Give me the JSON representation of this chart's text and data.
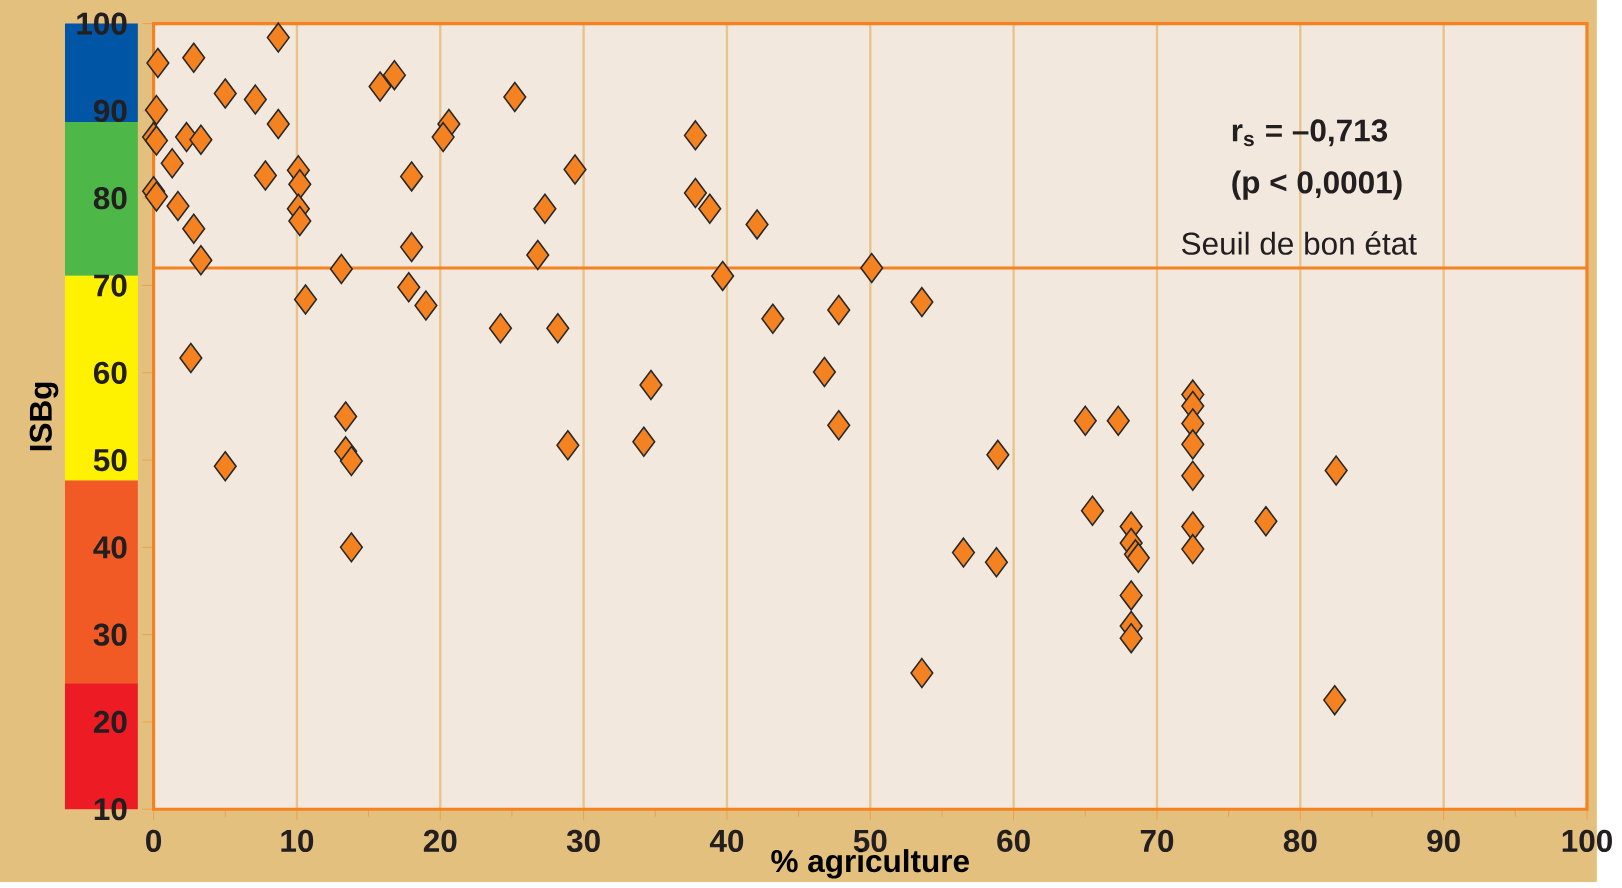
{
  "chart_data": {
    "type": "scatter",
    "xlabel": "% agriculture",
    "ylabel": "ISBg",
    "x": [
      0.3,
      2.8,
      8.7,
      5.0,
      7.1,
      0.2,
      15.8,
      16.8,
      25.2,
      8.7,
      0.0,
      0.2,
      2.3,
      3.3,
      20.6,
      20.2,
      1.3,
      7.8,
      10.1,
      10.2,
      18.0,
      0.0,
      0.2,
      1.7,
      10.1,
      10.2,
      2.8,
      3.3,
      18.0,
      13.1,
      27.3,
      26.8,
      10.6,
      17.8,
      19.0,
      24.2,
      28.2,
      2.6,
      13.4,
      5.0,
      13.4,
      13.8,
      13.8,
      29.4,
      37.8,
      37.8,
      38.8,
      42.1,
      39.7,
      50.1,
      43.2,
      47.8,
      53.6,
      34.7,
      46.8,
      47.8,
      28.9,
      34.2,
      58.9,
      56.5,
      58.8,
      53.6,
      65.0,
      67.3,
      72.5,
      72.5,
      72.5,
      72.5,
      72.5,
      72.5,
      72.5,
      82.5,
      65.5,
      68.2,
      68.2,
      68.5,
      68.7,
      77.6,
      68.2,
      68.2,
      68.2,
      82.4
    ],
    "series": [
      {
        "color": "#f58220",
        "values": [
          95.5,
          96.1,
          98.4,
          92.0,
          91.3,
          90.1,
          92.8,
          94.1,
          91.6,
          88.5,
          87.0,
          86.6,
          87.0,
          86.7,
          88.5,
          87.0,
          84.0,
          82.6,
          83.2,
          81.6,
          82.5,
          80.8,
          80.2,
          79.1,
          78.8,
          77.4,
          76.5,
          72.9,
          74.4,
          71.9,
          78.8,
          73.5,
          68.4,
          69.8,
          67.7,
          65.1,
          65.1,
          61.7,
          55.0,
          49.3,
          51.0,
          49.9,
          40.0,
          83.3,
          87.2,
          80.6,
          78.8,
          77.0,
          71.1,
          72.0,
          66.2,
          67.2,
          68.1,
          58.6,
          60.1,
          54.0,
          51.7,
          52.1,
          50.6,
          39.4,
          38.3,
          25.6,
          54.5,
          54.5,
          57.5,
          56.2,
          54.2,
          51.8,
          48.2,
          42.4,
          39.8,
          48.8,
          44.2,
          42.4,
          40.5,
          39.2,
          38.8,
          43.0,
          34.5,
          31.0,
          29.6,
          22.5
        ]
      }
    ],
    "xlim": [
      0,
      100
    ],
    "ylim": [
      10,
      100
    ],
    "xticks": [
      0,
      10,
      20,
      30,
      40,
      50,
      60,
      70,
      80,
      90,
      100
    ],
    "yticks": [
      10,
      20,
      30,
      40,
      50,
      60,
      70,
      80,
      90,
      100
    ],
    "grid": "x",
    "marker": "diamond",
    "ref_lines": [
      {
        "axis": "y",
        "value": 72,
        "label": "Seuil de bon état",
        "color": "#f58220"
      }
    ],
    "annotations": [
      "r$_{s}$ = –0,713",
      "(p < 0,0001)"
    ]
  }
}
